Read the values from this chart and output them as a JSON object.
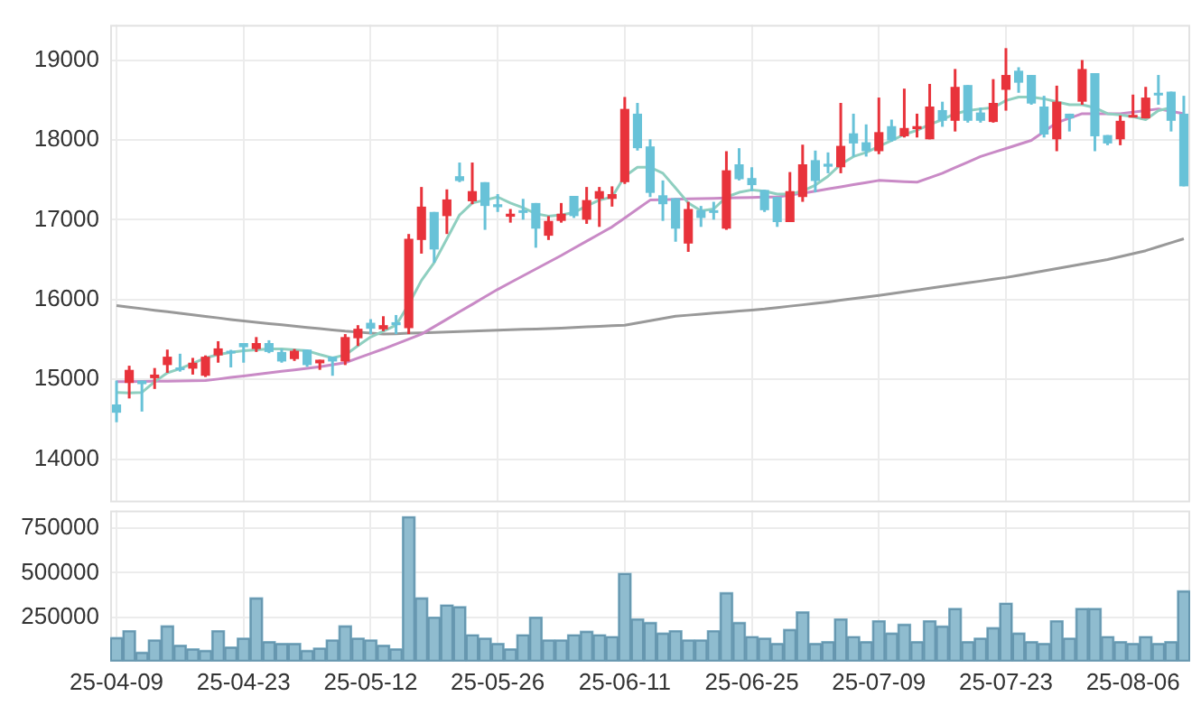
{
  "chart_data": [
    {
      "type": "candlestick",
      "categories": [
        null,
        null,
        null,
        null,
        null,
        null,
        null,
        null,
        null,
        null,
        null,
        null,
        null,
        null,
        null,
        null,
        null,
        null,
        null,
        null,
        null,
        null,
        null,
        null,
        null,
        null,
        null,
        null,
        null,
        null,
        null,
        null,
        null,
        null,
        null,
        null,
        null,
        null,
        null,
        null,
        null,
        null,
        null,
        null,
        null,
        null,
        null,
        null,
        null,
        null,
        null,
        null,
        null,
        null,
        null,
        null,
        null,
        null,
        null,
        null,
        null,
        null,
        null,
        null,
        null,
        null,
        null,
        null,
        null,
        null,
        null,
        null,
        null,
        null,
        null,
        null,
        null,
        null,
        null,
        null,
        null,
        null,
        null,
        null,
        null
      ],
      "ohlc": [
        [
          14686,
          14985,
          14463,
          14582
        ],
        [
          14955,
          15171,
          14761,
          15119
        ],
        [
          14985,
          14985,
          14597,
          14940
        ],
        [
          15015,
          15142,
          14880,
          15060
        ],
        [
          15179,
          15373,
          15082,
          15284
        ],
        [
          15150,
          15321,
          15097,
          15135
        ],
        [
          15134,
          15269,
          15060,
          15209
        ],
        [
          15045,
          15300,
          15030,
          15284
        ],
        [
          15300,
          15478,
          15209,
          15388
        ],
        [
          15358,
          15370,
          15150,
          15343
        ],
        [
          15455,
          15455,
          15209,
          15403
        ],
        [
          15380,
          15530,
          15343,
          15455
        ],
        [
          15455,
          15490,
          15328,
          15343
        ],
        [
          15343,
          15380,
          15209,
          15224
        ],
        [
          15254,
          15380,
          15231,
          15358
        ],
        [
          15373,
          15373,
          15157,
          15179
        ],
        [
          15201,
          15246,
          15119,
          15246
        ],
        [
          15284,
          15284,
          15045,
          15224
        ],
        [
          15224,
          15567,
          15179,
          15530
        ],
        [
          15515,
          15679,
          15418,
          15634
        ],
        [
          15709,
          15754,
          15567,
          15634
        ],
        [
          15627,
          15791,
          15604,
          15679
        ],
        [
          15716,
          15806,
          15567,
          15679
        ],
        [
          15642,
          16821,
          15567,
          16761
        ],
        [
          16746,
          17410,
          16575,
          17164
        ],
        [
          17097,
          17097,
          16463,
          16627
        ],
        [
          17045,
          17380,
          16821,
          17254
        ],
        [
          17545,
          17716,
          17470,
          17485
        ],
        [
          17231,
          17716,
          17194,
          17358
        ],
        [
          17470,
          17470,
          16873,
          17172
        ],
        [
          17194,
          17321,
          17097,
          17157
        ],
        [
          17037,
          17134,
          16963,
          17075
        ],
        [
          17119,
          17261,
          17000,
          17090
        ],
        [
          17209,
          17209,
          16649,
          16888
        ],
        [
          16799,
          17045,
          16746,
          16985
        ],
        [
          16985,
          17209,
          16963,
          17075
        ],
        [
          17298,
          17298,
          17022,
          17045
        ],
        [
          17000,
          17410,
          16948,
          17246
        ],
        [
          17261,
          17410,
          16910,
          17358
        ],
        [
          17261,
          17418,
          17164,
          17321
        ],
        [
          17470,
          18537,
          17448,
          18388
        ],
        [
          18328,
          18463,
          17866,
          17896
        ],
        [
          17918,
          18007,
          17284,
          17336
        ],
        [
          17306,
          17492,
          16985,
          17194
        ],
        [
          17269,
          17269,
          16724,
          16888
        ],
        [
          16701,
          17224,
          16597,
          17134
        ],
        [
          17119,
          17172,
          16910,
          17022
        ],
        [
          17119,
          17224,
          17000,
          17090
        ],
        [
          16888,
          17858,
          16873,
          17619
        ],
        [
          17694,
          17896,
          17492,
          17507
        ],
        [
          17522,
          17657,
          17358,
          17433
        ],
        [
          17373,
          17373,
          17097,
          17119
        ],
        [
          17284,
          17284,
          16910,
          16970
        ],
        [
          16970,
          17597,
          16970,
          17358
        ],
        [
          17284,
          17940,
          17224,
          17694
        ],
        [
          17746,
          17866,
          17343,
          17485
        ],
        [
          17701,
          17843,
          17582,
          17664
        ],
        [
          17657,
          18463,
          17582,
          17925
        ],
        [
          18082,
          18328,
          17791,
          17955
        ],
        [
          17970,
          18194,
          17791,
          17858
        ],
        [
          17858,
          18530,
          17821,
          18097
        ],
        [
          18172,
          18254,
          17978,
          17993
        ],
        [
          18045,
          18642,
          18030,
          18149
        ],
        [
          18134,
          18328,
          18030,
          18172
        ],
        [
          18007,
          18701,
          18007,
          18418
        ],
        [
          18373,
          18478,
          18164,
          18239
        ],
        [
          18239,
          18888,
          18105,
          18664
        ],
        [
          18687,
          18687,
          18216,
          18239
        ],
        [
          18343,
          18403,
          18216,
          18239
        ],
        [
          18224,
          18761,
          18216,
          18463
        ],
        [
          18627,
          19149,
          18366,
          18813
        ],
        [
          18866,
          18910,
          18590,
          18716
        ],
        [
          18813,
          18813,
          18440,
          18455
        ],
        [
          18418,
          18552,
          18030,
          18067
        ],
        [
          18007,
          18679,
          17858,
          18478
        ],
        [
          18328,
          18328,
          18105,
          18269
        ],
        [
          18478,
          19000,
          18440,
          18888
        ],
        [
          18836,
          18836,
          17858,
          18045
        ],
        [
          18060,
          18060,
          17933,
          17955
        ],
        [
          18007,
          18306,
          17933,
          18239
        ],
        [
          18284,
          18567,
          18284,
          18313
        ],
        [
          18269,
          18664,
          18269,
          18530
        ],
        [
          18590,
          18813,
          18440,
          18567
        ],
        [
          18604,
          18604,
          18105,
          18239
        ],
        [
          18328,
          18552,
          17418,
          17418
        ]
      ],
      "colors": [
        "#68c2d8",
        "#e8333b",
        "#68c2d8",
        "#e8333b",
        "#e8333b",
        "#68c2d8",
        "#e8333b",
        "#e8333b",
        "#e8333b",
        "#68c2d8",
        "#68c2d8",
        "#e8333b",
        "#68c2d8",
        "#68c2d8",
        "#e8333b",
        "#68c2d8",
        "#e8333b",
        "#68c2d8",
        "#e8333b",
        "#e8333b",
        "#68c2d8",
        "#e8333b",
        "#68c2d8",
        "#e8333b",
        "#e8333b",
        "#68c2d8",
        "#e8333b",
        "#68c2d8",
        "#e8333b",
        "#68c2d8",
        "#68c2d8",
        "#e8333b",
        "#68c2d8",
        "#68c2d8",
        "#e8333b",
        "#e8333b",
        "#68c2d8",
        "#e8333b",
        "#e8333b",
        "#e8333b",
        "#e8333b",
        "#68c2d8",
        "#68c2d8",
        "#68c2d8",
        "#68c2d8",
        "#e8333b",
        "#68c2d8",
        "#68c2d8",
        "#e8333b",
        "#68c2d8",
        "#68c2d8",
        "#68c2d8",
        "#68c2d8",
        "#e8333b",
        "#e8333b",
        "#68c2d8",
        "#68c2d8",
        "#e8333b",
        "#68c2d8",
        "#68c2d8",
        "#e8333b",
        "#68c2d8",
        "#e8333b",
        "#e8333b",
        "#e8333b",
        "#68c2d8",
        "#e8333b",
        "#68c2d8",
        "#68c2d8",
        "#e8333b",
        "#e8333b",
        "#68c2d8",
        "#68c2d8",
        "#68c2d8",
        "#e8333b",
        "#68c2d8",
        "#e8333b",
        "#68c2d8",
        "#68c2d8",
        "#e8333b",
        "#e8333b",
        "#e8333b",
        "#68c2d8",
        "#68c2d8",
        "#68c2d8"
      ],
      "series": [
        {
          "type": "line",
          "color": "#8fcfc0",
          "values": [
            14836,
            14830,
            14836,
            14970,
            15082,
            15134,
            15200,
            15269,
            15310,
            15340,
            15358,
            15370,
            15380,
            15380,
            15370,
            15358,
            15310,
            15269,
            15306,
            15420,
            15530,
            15604,
            15679,
            15940,
            16239,
            16463,
            16761,
            17060,
            17209,
            17246,
            17284,
            17209,
            17149,
            17075,
            17045,
            17060,
            17090,
            17172,
            17246,
            17284,
            17545,
            17657,
            17657,
            17582,
            17396,
            17209,
            17112,
            17134,
            17284,
            17343,
            17373,
            17358,
            17321,
            17321,
            17358,
            17433,
            17545,
            17694,
            17791,
            17843,
            17918,
            17993,
            18067,
            18119,
            18194,
            18254,
            18328,
            18366,
            18388,
            18403,
            18492,
            18537,
            18537,
            18515,
            18478,
            18440,
            18440,
            18403,
            18328,
            18313,
            18291,
            18254,
            18366,
            18403,
            null
          ]
        },
        {
          "type": "line",
          "color": "#c98ac6",
          "values": [
            14970,
            14972,
            14974,
            14976,
            14978,
            14980,
            14983,
            14985,
            15004,
            15024,
            15043,
            15063,
            15082,
            15101,
            15119,
            15138,
            15157,
            15183,
            15209,
            15266,
            15324,
            15381,
            15443,
            15505,
            15567,
            15660,
            15753,
            15847,
            15940,
            16034,
            16127,
            16212,
            16297,
            16382,
            16467,
            16552,
            16642,
            16731,
            16821,
            16910,
            17022,
            17134,
            17246,
            17250,
            17255,
            17261,
            17265,
            17268,
            17272,
            17275,
            17279,
            17284,
            17284,
            17309,
            17333,
            17358,
            17385,
            17412,
            17439,
            17465,
            17492,
            17485,
            17477,
            17470,
            17526,
            17582,
            17652,
            17721,
            17791,
            17842,
            17892,
            17943,
            17993,
            18105,
            18216,
            18272,
            18328,
            18328,
            18328,
            18328,
            18348,
            18368,
            18388,
            18358,
            18328
          ]
        },
        {
          "type": "line",
          "color": "#999999",
          "values": [
            15925,
            15905,
            15886,
            15866,
            15847,
            15828,
            15808,
            15789,
            15770,
            15750,
            15731,
            15715,
            15699,
            15683,
            15667,
            15651,
            15636,
            15620,
            15604,
            15592,
            15580,
            15567,
            15572,
            15578,
            15583,
            15589,
            15594,
            15599,
            15605,
            15610,
            15615,
            15621,
            15626,
            15631,
            15637,
            15642,
            15649,
            15657,
            15664,
            15672,
            15679,
            15707,
            15735,
            15763,
            15791,
            15804,
            15817,
            15830,
            15843,
            15856,
            15868,
            15881,
            15899,
            15917,
            15934,
            15952,
            15970,
            15991,
            16011,
            16032,
            16052,
            16074,
            16097,
            16119,
            16142,
            16164,
            16186,
            16209,
            16231,
            16254,
            16276,
            16304,
            16332,
            16360,
            16388,
            16416,
            16444,
            16472,
            16500,
            16537,
            16575,
            16612,
            16662,
            16711,
            16761
          ]
        }
      ],
      "ylim": [
        13460,
        19440
      ],
      "yticks": [
        14000,
        15000,
        16000,
        17000,
        18000,
        19000
      ],
      "grid": true,
      "tick_labels": "y"
    },
    {
      "type": "bar",
      "categories": [
        "25-04-09",
        null,
        null,
        null,
        null,
        null,
        null,
        null,
        null,
        null,
        "25-04-23",
        null,
        null,
        null,
        null,
        null,
        null,
        null,
        null,
        null,
        "25-05-12",
        null,
        null,
        null,
        null,
        null,
        null,
        null,
        null,
        null,
        "25-05-26",
        null,
        null,
        null,
        null,
        null,
        null,
        null,
        null,
        null,
        "25-06-11",
        null,
        null,
        null,
        null,
        null,
        null,
        null,
        null,
        null,
        "25-06-25",
        null,
        null,
        null,
        null,
        null,
        null,
        null,
        null,
        null,
        "25-07-09",
        null,
        null,
        null,
        null,
        null,
        null,
        null,
        null,
        null,
        "25-07-23",
        null,
        null,
        null,
        null,
        null,
        null,
        null,
        null,
        null,
        "25-08-06",
        null,
        null,
        null,
        null
      ],
      "values": [
        135000,
        174000,
        53000,
        122000,
        201000,
        92000,
        72000,
        63000,
        174000,
        82000,
        132000,
        359000,
        112000,
        102000,
        102000,
        63000,
        76000,
        122000,
        201000,
        132000,
        122000,
        92000,
        72000,
        816000,
        359000,
        250000,
        319000,
        309000,
        151000,
        132000,
        102000,
        72000,
        151000,
        250000,
        122000,
        122000,
        151000,
        171000,
        151000,
        141000,
        497000,
        240000,
        220000,
        161000,
        174000,
        122000,
        122000,
        174000,
        388000,
        220000,
        141000,
        132000,
        102000,
        181000,
        280000,
        102000,
        112000,
        240000,
        141000,
        112000,
        230000,
        161000,
        210000,
        112000,
        230000,
        200000,
        299000,
        112000,
        132000,
        191000,
        329000,
        161000,
        112000,
        102000,
        230000,
        132000,
        299000,
        299000,
        141000,
        112000,
        102000,
        141000,
        102000,
        112000,
        398000
      ],
      "color": "#8fbccf",
      "ylim": [
        0,
        850000
      ],
      "yticks": [
        250000,
        500000,
        750000
      ],
      "grid": true
    }
  ]
}
